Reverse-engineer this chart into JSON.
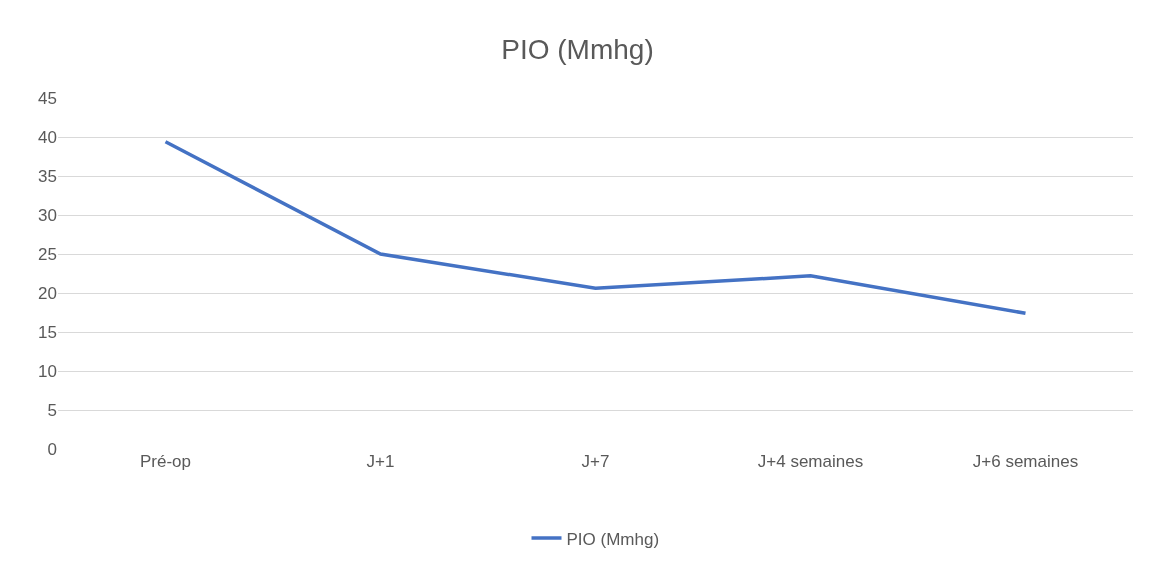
{
  "chart_data": {
    "type": "line",
    "title": "PIO (Mmhg)",
    "categories": [
      "Pré-op",
      "J+1",
      "J+7",
      "J+4 semaines",
      "J+6 semaines"
    ],
    "series": [
      {
        "name": "PIO (Mmhg)",
        "color": "#4472c4",
        "values": [
          39.4,
          25,
          20.6,
          22.2,
          17.4
        ]
      }
    ],
    "ylim": [
      0,
      45
    ],
    "yticks": [
      0,
      5,
      10,
      15,
      20,
      25,
      30,
      35,
      40,
      45
    ],
    "grid": "y",
    "legend": "bottom",
    "marker": "none",
    "line_style": "solid"
  }
}
